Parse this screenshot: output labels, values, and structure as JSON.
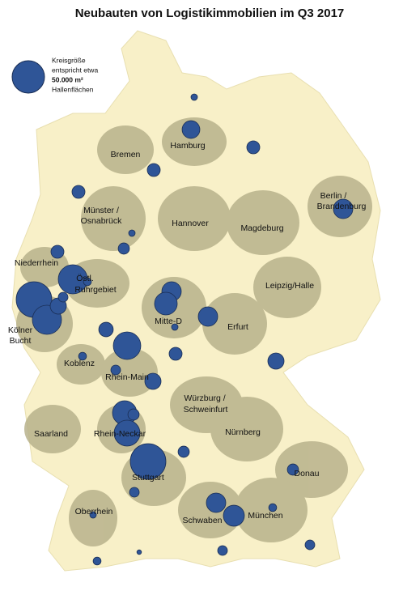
{
  "title": "Neubauten von Logistikimmobilien im Q3 2017",
  "legend": {
    "line1": "Kreisgröße",
    "line2": "entspricht etwa",
    "reference": {
      "value": 50000,
      "label": "50.000 m²"
    },
    "line4": "Hallenflächen"
  },
  "regions": [
    "Hamburg",
    "Bremen",
    "Münster /",
    "Osnabrück",
    "Hannover",
    "Magdeburg",
    "Berlin /",
    "Brandenburg",
    "Niederrhein",
    "Östl.",
    "Ruhrgebiet",
    "Kölner",
    "Bucht",
    "Mitte-D",
    "Erfurt",
    "Leipzig/Halle",
    "Koblenz",
    "Rhein-Main",
    "Würzburg /",
    "Schweinfurt",
    "Nürnberg",
    "Saarland",
    "Rhein-Neckar",
    "Stuttgart",
    "Donau",
    "Schwaben",
    "München",
    "Oberrhein"
  ],
  "bubbles": [
    2000,
    15000,
    8000,
    8000,
    8000,
    18000,
    2000,
    6000,
    8000,
    40500,
    3000,
    60500,
    40500,
    12500,
    4500,
    18000,
    24500,
    2000,
    18000,
    10000,
    36000,
    8000,
    3000,
    12500,
    4500,
    12500,
    28000,
    6000,
    32000,
    6000,
    60500,
    6000,
    4500,
    18000,
    21000,
    3000,
    2000,
    4500,
    4500,
    3000,
    1000
  ]
}
